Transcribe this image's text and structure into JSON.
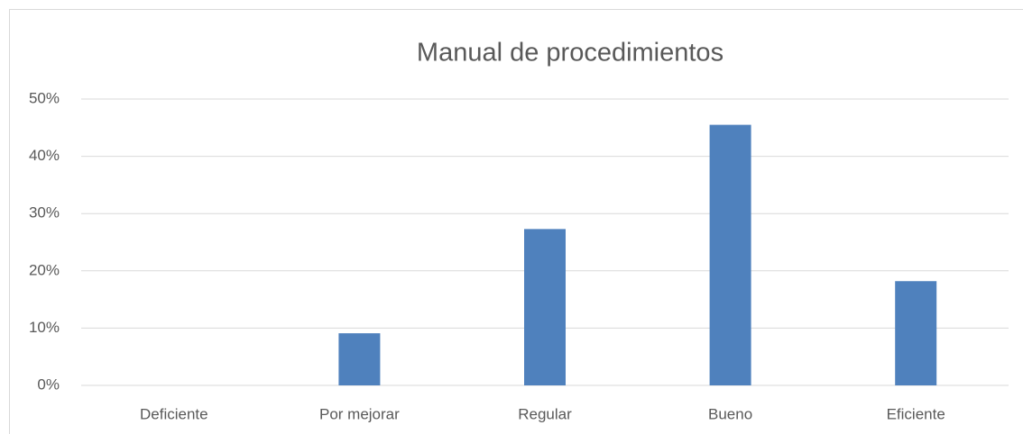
{
  "chart_data": {
    "type": "bar",
    "title": "Manual de procedimientos",
    "categories": [
      "Deficiente",
      "Por mejorar",
      "Regular",
      "Bueno",
      "Eficiente"
    ],
    "values": [
      0,
      9.1,
      27.3,
      45.5,
      18.2
    ],
    "color": "#4f81bd",
    "ylim": [
      0,
      50
    ],
    "yticks": [
      {
        "value": 0,
        "label": "0%"
      },
      {
        "value": 10,
        "label": "10%"
      },
      {
        "value": 20,
        "label": "20%"
      },
      {
        "value": 30,
        "label": "30%"
      },
      {
        "value": 40,
        "label": "40%"
      },
      {
        "value": 50,
        "label": "50%"
      }
    ],
    "grid": true
  }
}
